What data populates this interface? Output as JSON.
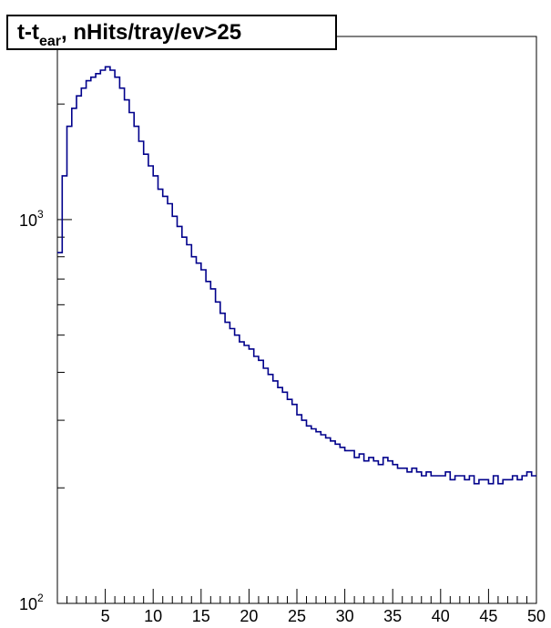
{
  "chart_data": {
    "type": "histogram",
    "title_main": "t-t",
    "title_sub": "ear",
    "title_rest": ", nHits/tray/ev>25",
    "x_range": [
      0,
      50
    ],
    "y_range_log": [
      100,
      3000
    ],
    "y_scale": "log",
    "x_ticks": [
      5,
      10,
      15,
      20,
      25,
      30,
      35,
      40,
      45,
      50
    ],
    "y_decades": [
      {
        "base": "10",
        "exp": "2",
        "value": 100
      },
      {
        "base": "10",
        "exp": "3",
        "value": 1000
      }
    ],
    "line_color": "#00008b",
    "grid": false,
    "bins": {
      "x": [
        0.0,
        0.5,
        1.0,
        1.5,
        2.0,
        2.5,
        3.0,
        3.5,
        4.0,
        4.5,
        5.0,
        5.5,
        6.0,
        6.5,
        7.0,
        7.5,
        8.0,
        8.5,
        9.0,
        9.5,
        10.0,
        10.5,
        11.0,
        11.5,
        12.0,
        12.5,
        13.0,
        13.5,
        14.0,
        14.5,
        15.0,
        15.5,
        16.0,
        16.5,
        17.0,
        17.5,
        18.0,
        18.5,
        19.0,
        19.5,
        20.0,
        20.5,
        21.0,
        21.5,
        22.0,
        22.5,
        23.0,
        23.5,
        24.0,
        24.5,
        25.0,
        25.5,
        26.0,
        26.5,
        27.0,
        27.5,
        28.0,
        28.5,
        29.0,
        29.5,
        30.0,
        30.5,
        31.0,
        31.5,
        32.0,
        32.5,
        33.0,
        33.5,
        34.0,
        34.5,
        35.0,
        35.5,
        36.0,
        36.5,
        37.0,
        37.5,
        38.0,
        38.5,
        39.0,
        39.5,
        40.0,
        40.5,
        41.0,
        41.5,
        42.0,
        42.5,
        43.0,
        43.5,
        44.0,
        44.5,
        45.0,
        45.5,
        46.0,
        46.5,
        47.0,
        47.5,
        48.0,
        48.5,
        49.0,
        49.5
      ],
      "y": [
        820,
        1300,
        1750,
        1950,
        2100,
        2200,
        2300,
        2350,
        2400,
        2450,
        2500,
        2450,
        2350,
        2200,
        2050,
        1900,
        1750,
        1600,
        1480,
        1380,
        1300,
        1200,
        1150,
        1100,
        1020,
        960,
        900,
        860,
        800,
        770,
        740,
        690,
        660,
        610,
        570,
        540,
        520,
        500,
        480,
        470,
        460,
        440,
        430,
        410,
        395,
        380,
        365,
        355,
        340,
        330,
        310,
        300,
        290,
        285,
        280,
        275,
        270,
        265,
        260,
        255,
        250,
        250,
        240,
        245,
        235,
        240,
        235,
        230,
        240,
        235,
        230,
        225,
        225,
        220,
        225,
        220,
        215,
        220,
        215,
        215,
        215,
        220,
        210,
        215,
        215,
        210,
        215,
        205,
        210,
        210,
        205,
        215,
        205,
        210,
        210,
        215,
        210,
        215,
        220,
        215
      ]
    }
  }
}
